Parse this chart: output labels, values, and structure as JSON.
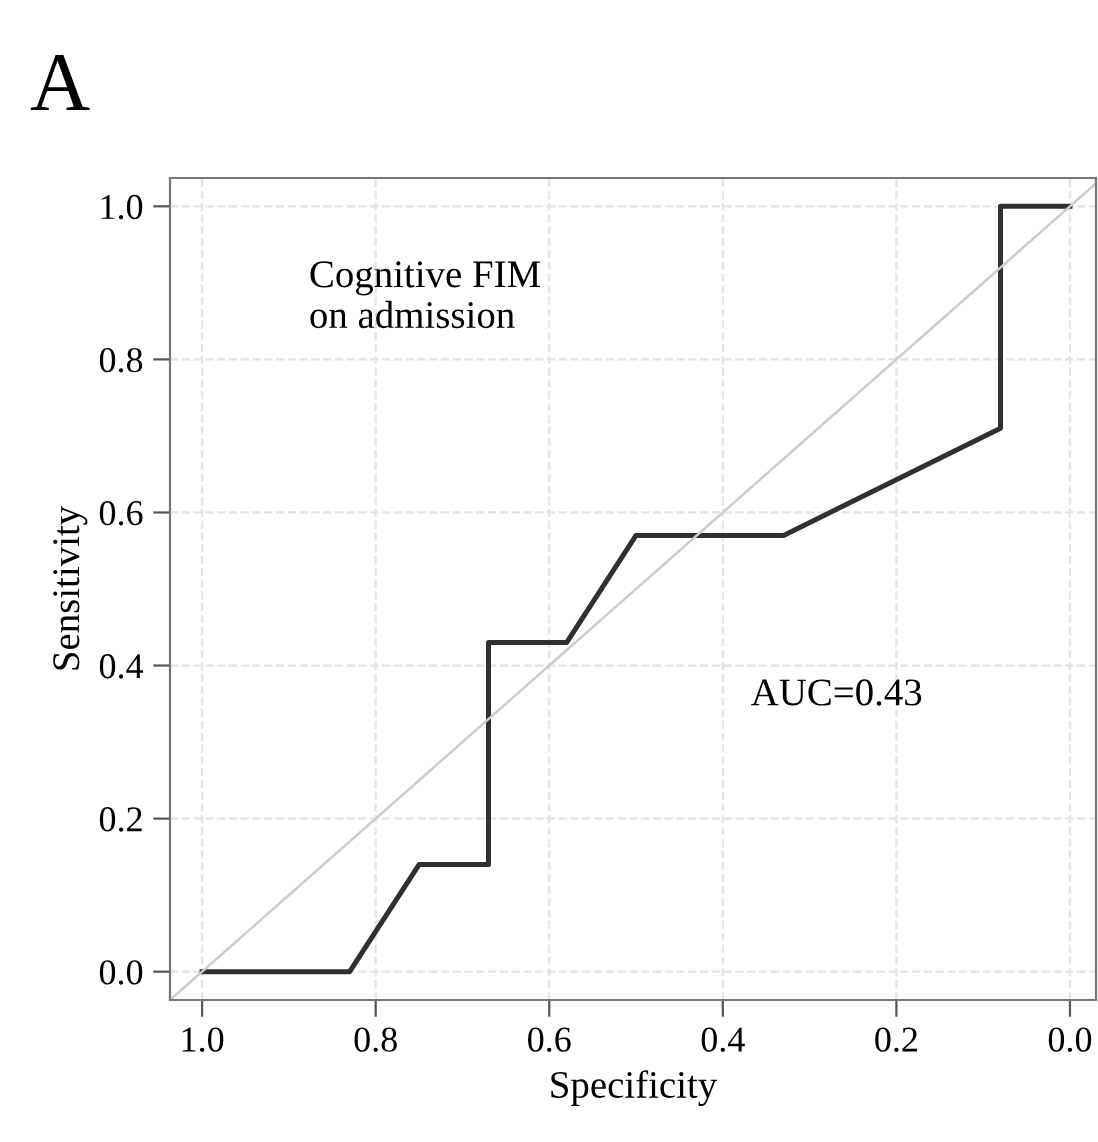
{
  "chart_data": {
    "type": "line",
    "title": "A",
    "xlabel": "Specificity",
    "ylabel": "Sensitivity",
    "series": [
      {
        "color": "#303030",
        "x": [
          1.0,
          0.83,
          0.75,
          0.67,
          0.67,
          0.58,
          0.5,
          0.33,
          0.08,
          0.08,
          0.0
        ],
        "values": [
          0.0,
          0.0,
          0.14,
          0.14,
          0.43,
          0.43,
          0.57,
          0.57,
          0.71,
          1.0,
          1.0
        ]
      },
      {
        "color": "#cccccc",
        "x": [
          1.037,
          -0.03
        ],
        "values": [
          -0.037,
          1.03
        ]
      }
    ],
    "xlim": [
      1.037,
      -0.03
    ],
    "ylim": [
      -0.037,
      1.037
    ],
    "xticks": [
      {
        "value": 1.0,
        "label": "1.0"
      },
      0.8,
      0.6,
      0.4,
      0.2,
      {
        "value": 0.0,
        "label": "0.0"
      }
    ],
    "yticks": [
      {
        "value": 0.0,
        "label": "0.0"
      },
      0.2,
      0.4,
      0.6,
      0.8,
      {
        "value": 1.0,
        "label": "1.0"
      }
    ],
    "grid": true,
    "legend": false,
    "annotations": [
      "Cognitive FIM\non admission",
      "AUC=0.43"
    ]
  }
}
